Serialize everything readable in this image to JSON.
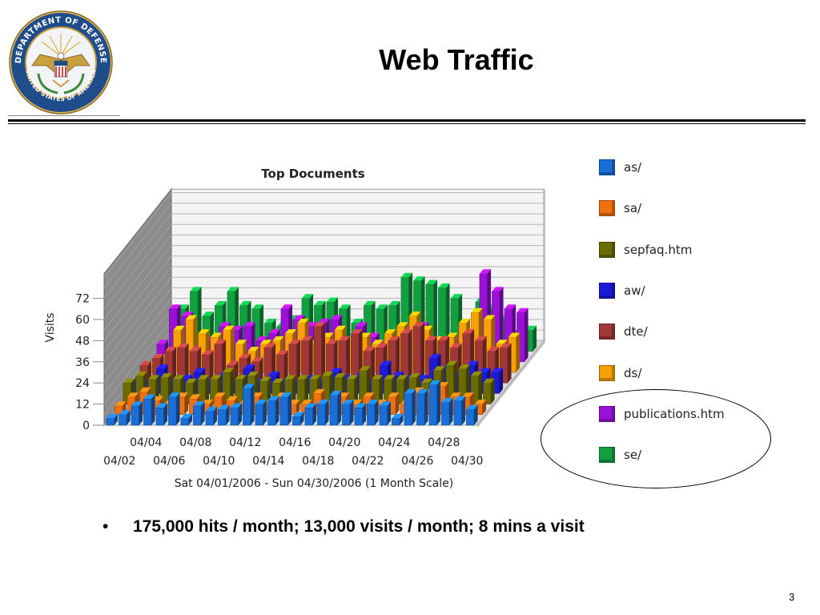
{
  "slide": {
    "title": "Web Traffic",
    "bullet": "175,000 hits / month; 13,000 visits / month; 8 mins a visit",
    "page_number": "3"
  },
  "seal": {
    "top_text": "DEPARTMENT OF DEFENSE",
    "bottom_text": "UNITED STATES OF AMERICA",
    "colors": {
      "ring": "#e8c060",
      "field": "#1f4c8a",
      "eagle": "#c8a040"
    }
  },
  "chart_data": {
    "type": "bar",
    "title": "Top Documents",
    "xlabel": "Sat 04/01/2006 - Sun 04/30/2006 (1 Month Scale)",
    "ylabel": "Visits",
    "ylim": [
      0,
      72
    ],
    "yticks": [
      0,
      12,
      24,
      36,
      48,
      60,
      72
    ],
    "xticks_front": [
      "04/02",
      "04/06",
      "04/10",
      "04/14",
      "04/18",
      "04/22",
      "04/26",
      "04/30"
    ],
    "xticks_back": [
      "04/04",
      "04/08",
      "04/12",
      "04/16",
      "04/20",
      "04/24",
      "04/28"
    ],
    "days": [
      "04/01",
      "04/02",
      "04/03",
      "04/04",
      "04/05",
      "04/06",
      "04/07",
      "04/08",
      "04/09",
      "04/10",
      "04/11",
      "04/12",
      "04/13",
      "04/14",
      "04/15",
      "04/16",
      "04/17",
      "04/18",
      "04/19",
      "04/20",
      "04/21",
      "04/22",
      "04/23",
      "04/24",
      "04/25",
      "04/26",
      "04/27",
      "04/28",
      "04/29",
      "04/30"
    ],
    "grid": true,
    "legend_position": "right",
    "series": [
      {
        "name": "as/",
        "color": "#1a6ed8",
        "values": [
          4,
          6,
          11,
          15,
          10,
          16,
          4,
          11,
          8,
          9,
          10,
          21,
          12,
          14,
          16,
          5,
          10,
          12,
          17,
          12,
          10,
          12,
          11,
          4,
          18,
          18,
          23,
          13,
          14,
          9
        ]
      },
      {
        "name": "sa/",
        "color": "#f07010",
        "values": [
          5,
          10,
          13,
          8,
          6,
          10,
          9,
          6,
          10,
          8,
          6,
          10,
          6,
          10,
          6,
          6,
          12,
          6,
          10,
          6,
          10,
          6,
          10,
          6,
          13,
          12,
          16,
          10,
          10,
          6
        ]
      },
      {
        "name": "sepfaq.htm",
        "color": "#6b6b00",
        "values": [
          12,
          16,
          14,
          15,
          14,
          12,
          14,
          14,
          18,
          14,
          16,
          13,
          12,
          14,
          14,
          14,
          16,
          15,
          14,
          19,
          14,
          14,
          14,
          15,
          12,
          19,
          22,
          20,
          16,
          12
        ]
      },
      {
        "name": "aw/",
        "color": "#1a1ad8",
        "values": [
          6,
          6,
          14,
          6,
          8,
          12,
          6,
          10,
          6,
          14,
          6,
          10,
          6,
          6,
          8,
          6,
          12,
          8,
          10,
          6,
          16,
          10,
          8,
          8,
          20,
          14,
          10,
          16,
          12,
          12
        ]
      },
      {
        "name": "dte/",
        "color": "#a03838",
        "values": [
          10,
          14,
          18,
          20,
          18,
          16,
          22,
          10,
          14,
          12,
          20,
          16,
          22,
          24,
          32,
          22,
          24,
          28,
          18,
          20,
          24,
          28,
          32,
          24,
          24,
          20,
          28,
          24,
          18,
          20
        ]
      },
      {
        "name": "ds/",
        "color": "#f8a000",
        "values": [
          4,
          8,
          24,
          30,
          22,
          20,
          24,
          16,
          12,
          16,
          18,
          22,
          28,
          16,
          20,
          24,
          18,
          20,
          16,
          22,
          26,
          32,
          24,
          18,
          20,
          28,
          34,
          30,
          16,
          20
        ]
      },
      {
        "name": "publications.htm",
        "color": "#9a10d8",
        "values": [
          10,
          30,
          26,
          8,
          12,
          20,
          18,
          20,
          12,
          16,
          30,
          24,
          20,
          22,
          24,
          10,
          20,
          14,
          10,
          12,
          18,
          20,
          12,
          10,
          12,
          14,
          50,
          40,
          30,
          28
        ]
      },
      {
        "name": "se/",
        "color": "#10a040",
        "values": [
          4,
          24,
          34,
          20,
          26,
          34,
          26,
          24,
          16,
          14,
          18,
          30,
          26,
          28,
          24,
          16,
          26,
          24,
          26,
          42,
          40,
          38,
          36,
          30,
          4,
          28,
          24,
          18,
          10,
          12
        ]
      }
    ]
  }
}
